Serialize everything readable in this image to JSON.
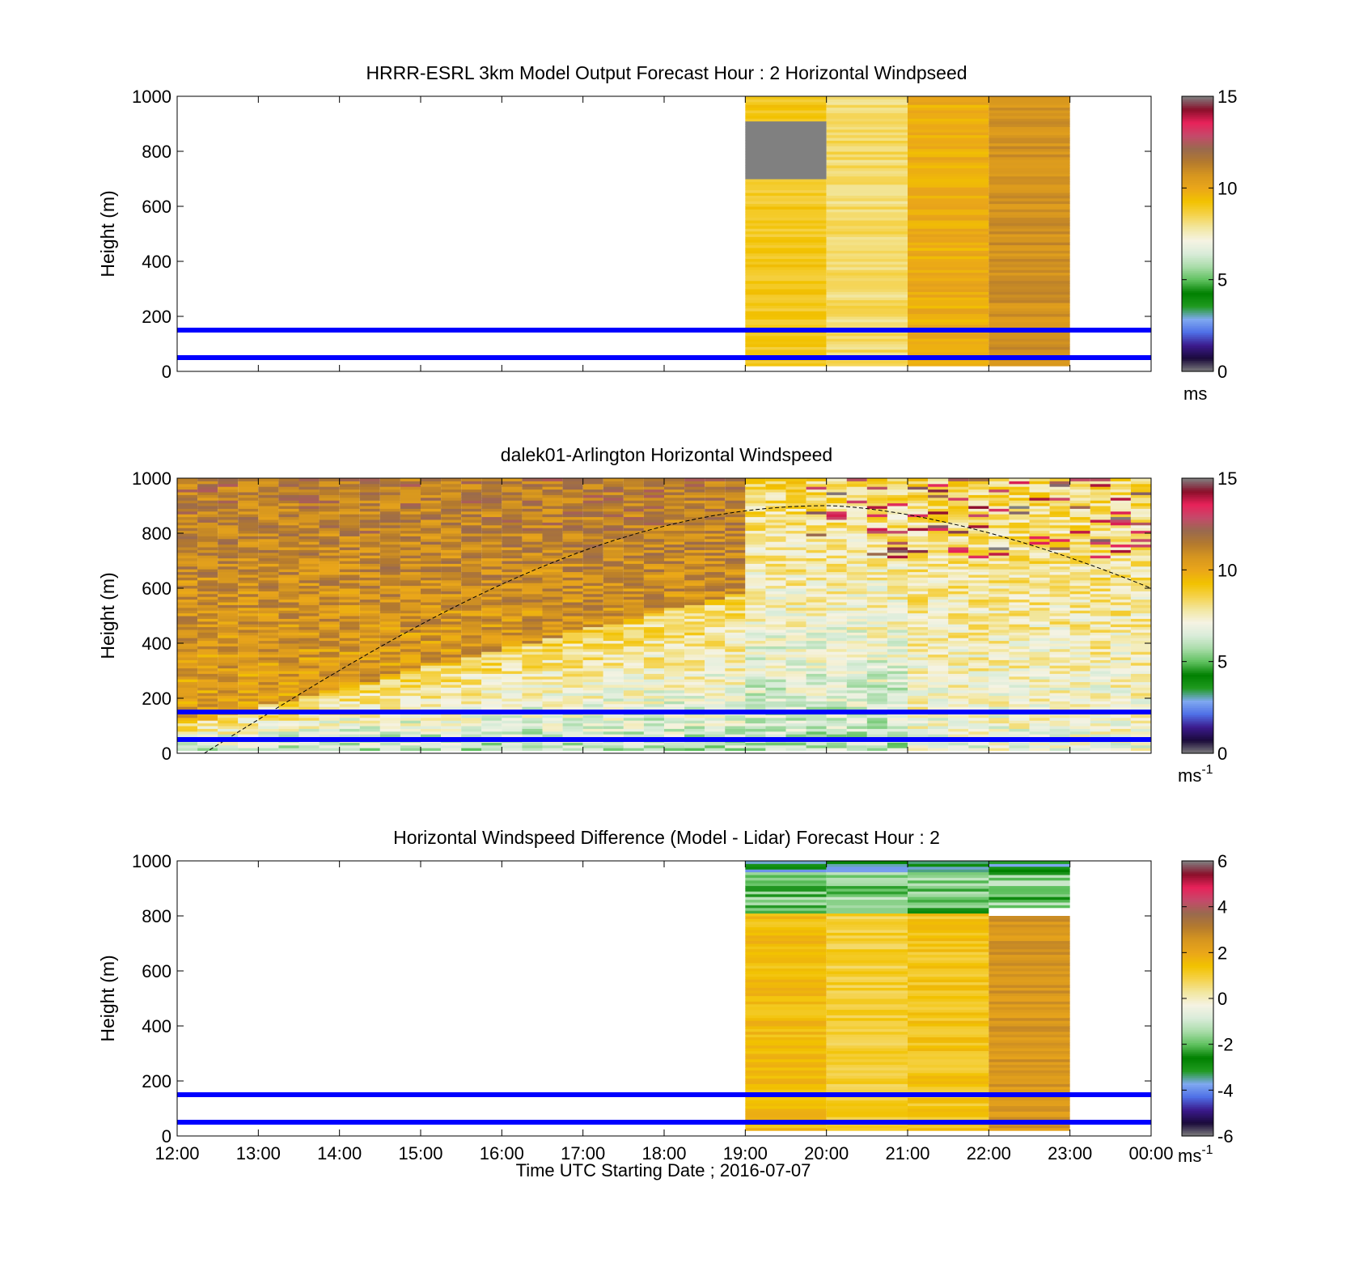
{
  "figure": {
    "x_axis_label": "Time UTC  Starting Date ; 2016-07-07",
    "x_tick_labels": [
      "12:00",
      "13:00",
      "14:00",
      "15:00",
      "16:00",
      "17:00",
      "18:00",
      "19:00",
      "20:00",
      "21:00",
      "22:00",
      "23:00",
      "00:00"
    ]
  },
  "chart_data": [
    {
      "type": "heatmap",
      "title": "HRRR-ESRL 3km Model Output   Forecast Hour : 2 Horizontal Windpseed",
      "xlabel": "",
      "ylabel": "Height (m)",
      "xlim": [
        "12:00",
        "00:00"
      ],
      "ylim": [
        0,
        1000
      ],
      "y_ticks": [
        0,
        200,
        400,
        600,
        800,
        1000
      ],
      "colorbar": {
        "ticks": [
          0,
          5,
          10,
          15
        ],
        "range": [
          0,
          15
        ],
        "unit": "ms",
        "unit_sup": ""
      },
      "reference_lines_m": [
        50,
        150
      ],
      "data_columns": [
        {
          "start": "19:00",
          "end": "20:00",
          "typical_value": 9
        },
        {
          "start": "20:00",
          "end": "21:00",
          "typical_value": 8.3
        },
        {
          "start": "21:00",
          "end": "22:00",
          "typical_value": 9.8
        },
        {
          "start": "22:00",
          "end": "23:00",
          "typical_value": 10.8
        }
      ]
    },
    {
      "type": "heatmap",
      "title": "dalek01-Arlington  Horizontal Windspeed",
      "xlabel": "",
      "ylabel": "Height (m)",
      "xlim": [
        "12:00",
        "00:00"
      ],
      "ylim": [
        0,
        1000
      ],
      "y_ticks": [
        0,
        200,
        400,
        600,
        800,
        1000
      ],
      "colorbar": {
        "ticks": [
          0,
          5,
          10,
          15
        ],
        "range": [
          0,
          15
        ],
        "unit": "ms",
        "unit_sup": "-1"
      },
      "reference_lines_m": [
        50,
        150
      ],
      "data_range": [
        "12:00",
        "23:50"
      ],
      "boundary_layer_curve": {
        "peak_time": "20:00",
        "peak_height_m": 900,
        "start_time": "12:20",
        "end_height_m": 600
      }
    },
    {
      "type": "heatmap",
      "title": "Horizontal Windspeed Difference (Model - Lidar) Forecast Hour : 2",
      "xlabel": "Time UTC  Starting Date ; 2016-07-07",
      "ylabel": "Height (m)",
      "xlim": [
        "12:00",
        "00:00"
      ],
      "ylim": [
        0,
        1000
      ],
      "y_ticks": [
        0,
        200,
        400,
        600,
        800,
        1000
      ],
      "colorbar": {
        "ticks": [
          -6,
          -4,
          -2,
          0,
          2,
          4,
          6
        ],
        "range": [
          -6,
          6
        ],
        "unit": "ms",
        "unit_sup": "-1"
      },
      "reference_lines_m": [
        50,
        150
      ],
      "data_columns": [
        {
          "start": "19:00",
          "end": "20:00",
          "typical_value": 1.5
        },
        {
          "start": "20:00",
          "end": "21:00",
          "typical_value": 1.0
        },
        {
          "start": "21:00",
          "end": "22:00",
          "typical_value": 1.3
        },
        {
          "start": "22:00",
          "end": "23:00",
          "typical_value": 2.5
        }
      ]
    }
  ],
  "colors": {
    "reference_line": "#0000ff",
    "colormap": [
      "#808080",
      "#1a0a3a",
      "#3b1a8c",
      "#4f6fe6",
      "#7fa9f0",
      "#1f9a1f",
      "#008000",
      "#5fc15f",
      "#a9dca9",
      "#d9ecd9",
      "#f5f3e3",
      "#f2e7a0",
      "#f5d24a",
      "#f2c200",
      "#eaa61a",
      "#d6961f",
      "#b47a2e",
      "#9a6a4e",
      "#c44a6a",
      "#e8225a",
      "#8a0f2a",
      "#808080"
    ]
  }
}
